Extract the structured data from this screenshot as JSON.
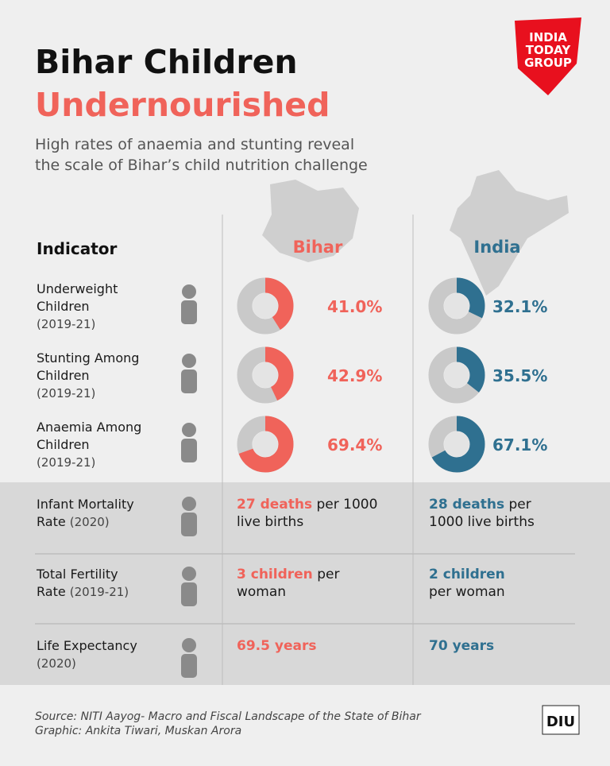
{
  "header": {
    "title_line1": "Bihar Children",
    "title_line2": "Undernourished",
    "subtitle_line1": "High rates of anaemia and stunting reveal",
    "subtitle_line2": "the scale of Bihar’s child nutrition challenge",
    "logo": [
      "INDIA",
      "TODAY",
      "GROUP"
    ]
  },
  "colors": {
    "bihar": "#f0635a",
    "india": "#2f7090",
    "ring": "#c9c9c9"
  },
  "table": {
    "columns": [
      "Indicator",
      "Bihar",
      "India"
    ],
    "donut_rows": [
      {
        "indicator": [
          "Underweight",
          "Children"
        ],
        "period": "(2019-21)",
        "bihar": {
          "value": 41.0,
          "label": "41.0%"
        },
        "india": {
          "value": 32.1,
          "label": "32.1%"
        }
      },
      {
        "indicator": [
          "Stunting Among",
          "Children"
        ],
        "period": "(2019-21)",
        "bihar": {
          "value": 42.9,
          "label": "42.9%"
        },
        "india": {
          "value": 35.5,
          "label": "35.5%"
        }
      },
      {
        "indicator": [
          "Anaemia Among",
          "Children"
        ],
        "period": "(2019-21)",
        "bihar": {
          "value": 69.4,
          "label": "69.4%"
        },
        "india": {
          "value": 67.1,
          "label": "67.1%"
        }
      }
    ],
    "text_rows": [
      {
        "indicator": [
          "Infant Mortality",
          "Rate"
        ],
        "period": "(2020)",
        "bihar": [
          {
            "highlight": "27 deaths",
            "text": "per 1000"
          },
          {
            "text": "live births"
          }
        ],
        "india": [
          {
            "highlight": "28 deaths",
            "text": "per"
          },
          {
            "text": "1000 live births"
          }
        ]
      },
      {
        "indicator": [
          "Total Fertility",
          "Rate"
        ],
        "period": "(2019-21)",
        "bihar": [
          {
            "highlight": "3 children",
            "text": "per"
          },
          {
            "text": "woman"
          }
        ],
        "india": [
          {
            "highlight": "2 children"
          },
          {
            "text": "per woman"
          }
        ]
      },
      {
        "indicator": [
          "Life Expectancy"
        ],
        "period": "(2020)",
        "bihar": [
          {
            "highlight": "69.5 years"
          }
        ],
        "india": [
          {
            "highlight": "70 years"
          }
        ]
      }
    ]
  },
  "footer": {
    "source": "Source: NITI Aayog- Macro and Fiscal Landscape of the State of Bihar",
    "credit": "Graphic: Ankita Tiwari, Muskan Arora",
    "badge": "DIU"
  }
}
